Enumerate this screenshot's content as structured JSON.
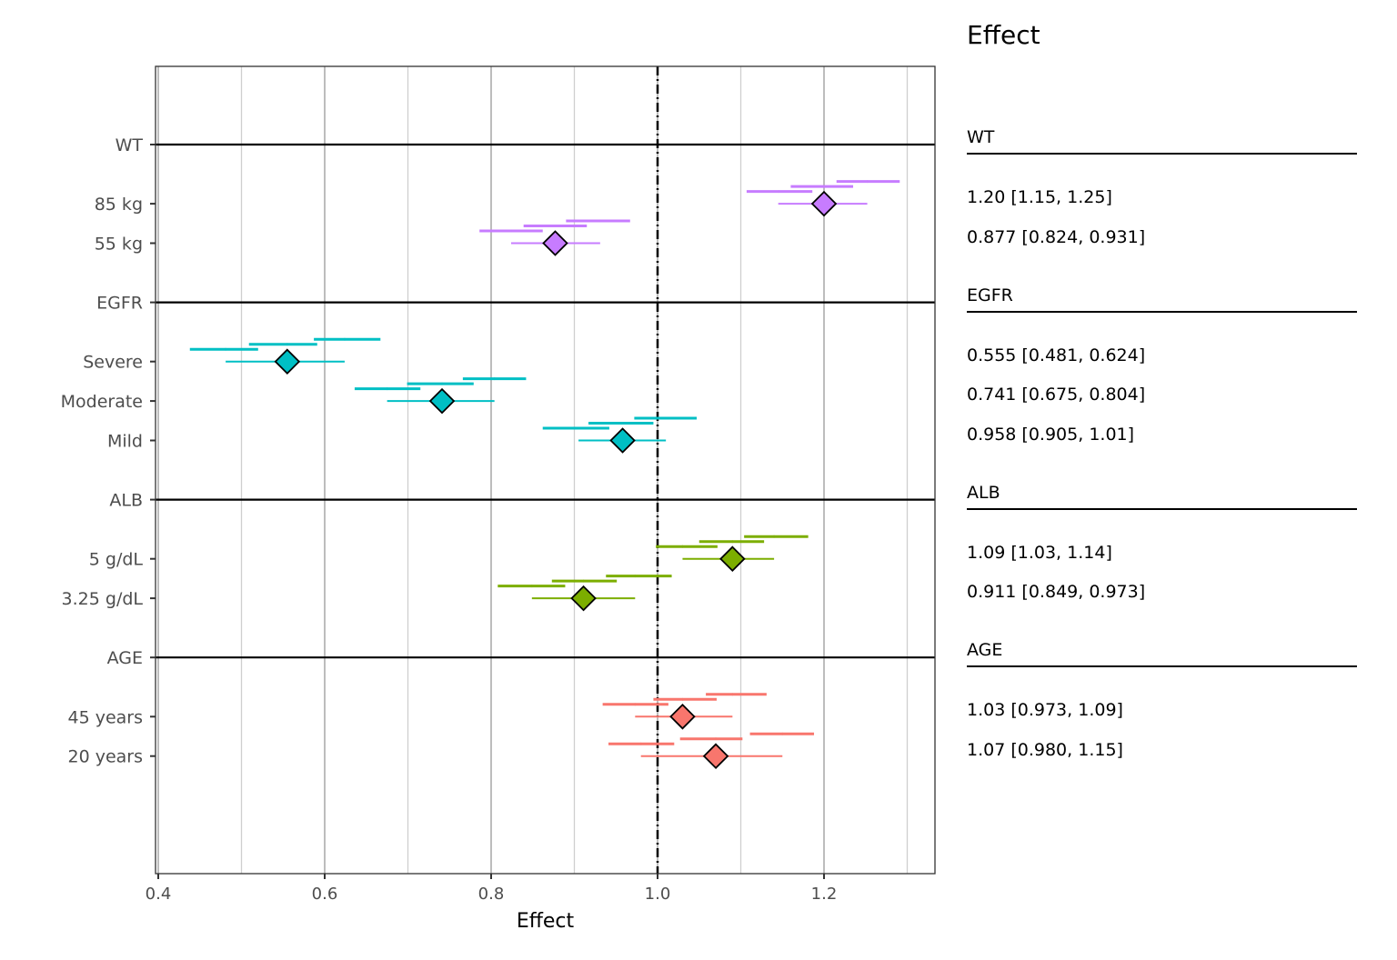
{
  "chart_data": {
    "type": "forest",
    "xlabel": "Effect",
    "xlim": [
      0.4,
      1.33
    ],
    "xticks": [
      0.4,
      0.6,
      0.8,
      1.0,
      1.2
    ],
    "xtick_labels": [
      "0.4",
      "0.6",
      "0.8",
      "1.0",
      "1.2"
    ],
    "reference_line": 1.0,
    "table_title": "Effect",
    "groups": [
      {
        "name": "WT",
        "color": "#C77CFF",
        "rows": [
          {
            "label": "85 kg",
            "value": 1.2,
            "lo": 1.145,
            "hi": 1.252,
            "text": "1.20 [1.15, 1.25]",
            "bars": [
              [
                1.107,
                1.146,
                1.186
              ],
              [
                1.16,
                1.199,
                1.235
              ],
              [
                1.215,
                1.252,
                1.291
              ]
            ]
          },
          {
            "label": "55 kg",
            "value": 0.877,
            "lo": 0.824,
            "hi": 0.931,
            "text": "0.877 [0.824, 0.931]",
            "bars": [
              [
                0.786,
                0.824,
                0.862
              ],
              [
                0.839,
                0.877,
                0.915
              ],
              [
                0.89,
                0.931,
                0.967
              ]
            ]
          }
        ]
      },
      {
        "name": "EGFR",
        "color": "#00BFC4",
        "rows": [
          {
            "label": "Severe",
            "value": 0.555,
            "lo": 0.481,
            "hi": 0.624,
            "text": "0.555 [0.481, 0.624]",
            "bars": [
              [
                0.438,
                0.481,
                0.52
              ],
              [
                0.509,
                0.555,
                0.591
              ],
              [
                0.587,
                0.624,
                0.667
              ]
            ]
          },
          {
            "label": "Moderate",
            "value": 0.741,
            "lo": 0.675,
            "hi": 0.804,
            "text": "0.741 [0.675, 0.804]",
            "bars": [
              [
                0.636,
                0.675,
                0.715
              ],
              [
                0.699,
                0.741,
                0.779
              ],
              [
                0.766,
                0.804,
                0.842
              ]
            ]
          },
          {
            "label": "Mild",
            "value": 0.958,
            "lo": 0.905,
            "hi": 1.01,
            "text": "0.958 [0.905, 1.01]",
            "bars": [
              [
                0.862,
                0.905,
                0.942
              ],
              [
                0.917,
                0.958,
                0.995
              ],
              [
                0.972,
                1.01,
                1.047
              ]
            ]
          }
        ]
      },
      {
        "name": "ALB",
        "color": "#7CAE00",
        "rows": [
          {
            "label": "5 g/dL",
            "value": 1.09,
            "lo": 1.03,
            "hi": 1.14,
            "text": "1.09 [1.03, 1.14]",
            "bars": [
              [
                0.998,
                1.03,
                1.072
              ],
              [
                1.05,
                1.09,
                1.128
              ],
              [
                1.104,
                1.14,
                1.181
              ]
            ]
          },
          {
            "label": "3.25 g/dL",
            "value": 0.911,
            "lo": 0.849,
            "hi": 0.973,
            "text": "0.911 [0.849, 0.973]",
            "bars": [
              [
                0.808,
                0.849,
                0.889
              ],
              [
                0.873,
                0.911,
                0.951
              ],
              [
                0.938,
                0.973,
                1.017
              ]
            ]
          }
        ]
      },
      {
        "name": "AGE",
        "color": "#F8766D",
        "rows": [
          {
            "label": "45 years",
            "value": 1.03,
            "lo": 0.973,
            "hi": 1.09,
            "text": "1.03 [0.973, 1.09]",
            "bars": [
              [
                0.934,
                0.973,
                1.013
              ],
              [
                0.995,
                1.03,
                1.071
              ],
              [
                1.058,
                1.09,
                1.131
              ]
            ]
          },
          {
            "label": "20 years",
            "value": 1.07,
            "lo": 0.98,
            "hi": 1.15,
            "text": "1.07 [0.980, 1.15]",
            "bars": [
              [
                0.941,
                0.98,
                1.02
              ],
              [
                1.027,
                1.07,
                1.102
              ],
              [
                1.111,
                1.15,
                1.188
              ]
            ]
          }
        ]
      }
    ]
  }
}
